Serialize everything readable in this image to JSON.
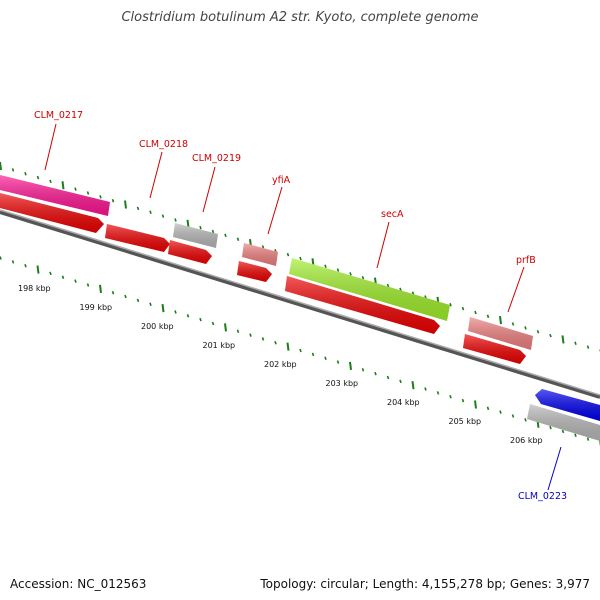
{
  "title": "Clostridium botulinum A2 str. Kyoto, complete genome",
  "accession": "Accession: NC_012563",
  "summary": "Topology: circular; Length: 4,155,278 bp; Genes: 3,977",
  "colors": {
    "label_red": "#cc0000",
    "label_blue": "#0000cc",
    "tick_green": "#1a7f1a",
    "backbone": "#777777"
  },
  "scale_labels": [
    "198 kbp",
    "199 kbp",
    "200 kbp",
    "201 kbp",
    "202 kbp",
    "203 kbp",
    "204 kbp",
    "205 kbp",
    "206 kbp"
  ],
  "gene_labels": {
    "clm0217": "CLM_0217",
    "clm0218": "CLM_0218",
    "clm0219": "CLM_0219",
    "yfia": "yfiA",
    "seca": "secA",
    "prfb": "prfB",
    "clm0223": "CLM_0223"
  },
  "gene_colors": {
    "magenta": "#ff1493",
    "red": "#ff0000",
    "gray": "#b8b8b8",
    "salmon": "#f08080",
    "lime": "#a0ef2a",
    "blue": "#0000ee"
  }
}
